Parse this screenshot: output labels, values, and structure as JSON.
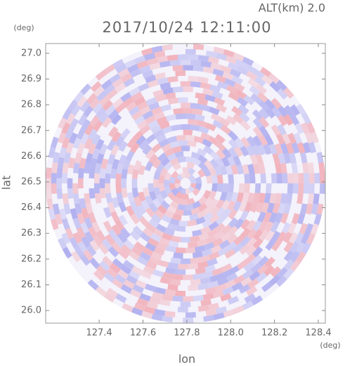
{
  "chart_data": {
    "type": "ppi",
    "title": "2017/10/24 12:11:00",
    "subtitle": "ALT(km) 2.0",
    "x_label": "lon",
    "y_label": "lat",
    "x_unit": "(deg)",
    "y_unit": "(deg)",
    "xlim": [
      127.156,
      128.432
    ],
    "ylim": [
      25.951,
      27.038
    ],
    "xticks": [
      127.4,
      127.6,
      127.8,
      {
        "value": 128,
        "label": "128.0"
      },
      128.2,
      128.4
    ],
    "yticks": [
      {
        "value": 26,
        "label": "26.0"
      },
      26.1,
      26.2,
      26.3,
      26.4,
      26.5,
      26.6,
      26.7,
      26.8,
      26.9,
      {
        "value": 27,
        "label": "27.0"
      }
    ]
  }
}
